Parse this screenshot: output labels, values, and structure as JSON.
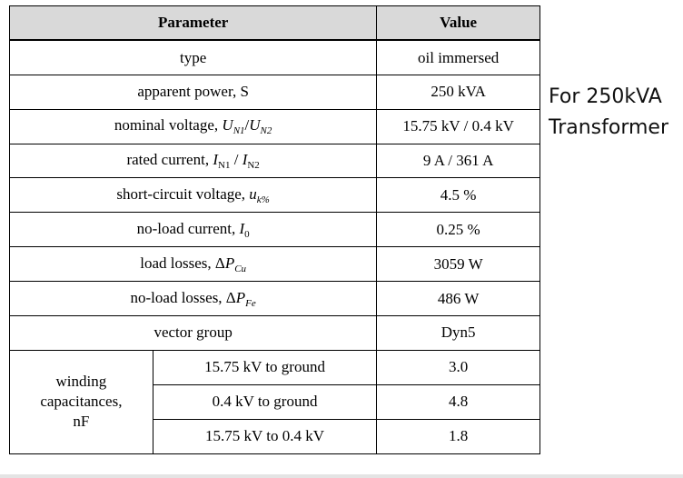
{
  "table": {
    "headers": {
      "parameter": "Parameter",
      "value": "Value"
    },
    "rows": [
      {
        "param": "type",
        "value": "oil immersed"
      },
      {
        "param": "apparent power, S",
        "value": "250 kVA"
      },
      {
        "param_prefix": "nominal voltage, ",
        "sym1": "U",
        "sub1": "N1",
        "sep": "/",
        "sym2": "U",
        "sub2": "N2",
        "value": "15.75 kV / 0.4 kV"
      },
      {
        "param_prefix": "rated current, ",
        "sym1": "I",
        "sub1": "N1",
        "sep": " / ",
        "sym2": "I",
        "sub2": "N2",
        "value": "9 A / 361 A"
      },
      {
        "param_prefix": "short-circuit voltage, ",
        "sym1": "u",
        "sub1": "k%",
        "value": "4.5 %"
      },
      {
        "param_prefix": "no-load current, ",
        "sym1": "I",
        "sub1": "0",
        "value": "0.25 %"
      },
      {
        "param_prefix": "load losses, Δ",
        "sym1": "P",
        "sub1": "Cu",
        "value": "3059 W"
      },
      {
        "param_prefix": "no-load losses, Δ",
        "sym1": "P",
        "sub1": "Fe",
        "value": "486 W"
      },
      {
        "param": "vector group",
        "value": "Dyn5"
      }
    ],
    "group": {
      "label_lines": [
        "winding",
        "capacitances,",
        "nF"
      ],
      "items": [
        {
          "param": "15.75 kV to ground",
          "value": "3.0"
        },
        {
          "param": "0.4 kV to ground",
          "value": "4.8"
        },
        {
          "param": "15.75 kV to 0.4 kV",
          "value": "1.8"
        }
      ]
    }
  },
  "note": {
    "line1": "For 250kVA",
    "line2": "Transformer"
  },
  "colors": {
    "header_bg": "#d9d9d9",
    "border": "#000000"
  }
}
